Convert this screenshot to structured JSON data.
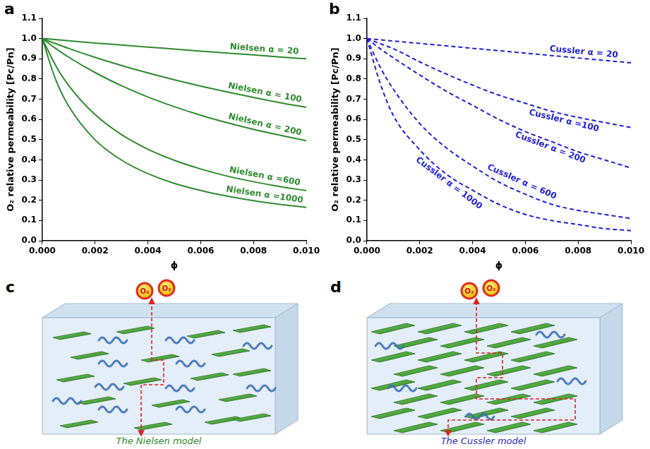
{
  "chart_data": [
    {
      "panel": "a",
      "type": "line",
      "x_label": "ϕ",
      "y_label": "O₂ relative permeability [Pc/Pn]",
      "x": [
        0,
        0.0005,
        0.001,
        0.002,
        0.003,
        0.004,
        0.005,
        0.006,
        0.007,
        0.008,
        0.009,
        0.01
      ],
      "xlim": [
        0,
        0.01
      ],
      "xticks": [
        {
          "value": 0,
          "label": "0.000"
        },
        {
          "value": 0.002,
          "label": "0.002"
        },
        {
          "value": 0.004,
          "label": "0.004"
        },
        {
          "value": 0.006,
          "label": "0.006"
        },
        {
          "value": 0.008,
          "label": "0.008"
        },
        {
          "value": 0.01,
          "label": "0.010"
        }
      ],
      "ylim": [
        0,
        1.1
      ],
      "yticks": [
        {
          "value": 0,
          "label": "0.0"
        },
        0.1,
        0.2,
        0.3,
        0.4,
        0.5,
        0.6,
        0.7,
        0.8,
        0.9,
        {
          "value": 1,
          "label": "1.0"
        },
        1.1
      ],
      "grid": false,
      "series": [
        {
          "name": "Nielsen α = 20",
          "color": "#2e8b2e",
          "line_style": "solid",
          "values": [
            1,
            0.995,
            0.989,
            0.978,
            0.968,
            0.958,
            0.948,
            0.938,
            0.928,
            0.919,
            0.909,
            0.9
          ]
        },
        {
          "name": "Nielsen α = 100",
          "color": "#2e8b2e",
          "line_style": "solid",
          "values": [
            1,
            0.975,
            0.951,
            0.907,
            0.867,
            0.83,
            0.796,
            0.765,
            0.736,
            0.709,
            0.683,
            0.66
          ]
        },
        {
          "name": "Nielsen α = 200",
          "color": "#2e8b2e",
          "line_style": "solid",
          "values": [
            1,
            0.952,
            0.908,
            0.832,
            0.767,
            0.711,
            0.663,
            0.621,
            0.584,
            0.551,
            0.522,
            0.495
          ]
        },
        {
          "name": "Nielsen α =600",
          "color": "#2e8b2e",
          "line_style": "solid",
          "values": [
            1,
            0.869,
            0.768,
            0.624,
            0.525,
            0.453,
            0.398,
            0.355,
            0.32,
            0.292,
            0.268,
            0.248
          ]
        },
        {
          "name": "Nielsen α =1000",
          "color": "#2e8b2e",
          "line_style": "solid",
          "values": [
            1,
            0.8,
            0.666,
            0.499,
            0.399,
            0.332,
            0.284,
            0.249,
            0.221,
            0.198,
            0.18,
            0.165
          ]
        }
      ]
    },
    {
      "panel": "b",
      "type": "line",
      "x_label": "ϕ",
      "y_label": "O₂ relative permeability [Pc/Pn]",
      "x": [
        0,
        0.0005,
        0.001,
        0.002,
        0.003,
        0.004,
        0.005,
        0.006,
        0.007,
        0.008,
        0.009,
        0.01
      ],
      "xlim": [
        0,
        0.01
      ],
      "xticks": [
        {
          "value": 0,
          "label": "0.000"
        },
        {
          "value": 0.002,
          "label": "0.002"
        },
        {
          "value": 0.004,
          "label": "0.004"
        },
        {
          "value": 0.006,
          "label": "0.006"
        },
        {
          "value": 0.008,
          "label": "0.008"
        },
        {
          "value": 0.01,
          "label": "0.010"
        }
      ],
      "ylim": [
        0,
        1.1
      ],
      "yticks": [
        {
          "value": 0,
          "label": "0.0"
        },
        0.1,
        0.2,
        0.3,
        0.4,
        0.5,
        0.6,
        0.7,
        0.8,
        0.9,
        {
          "value": 1,
          "label": "1.0"
        },
        1.1
      ],
      "grid": false,
      "series": [
        {
          "name": "Cussler α = 20",
          "color": "#1f1fd6",
          "line_style": "dashed",
          "values": [
            1,
            0.994,
            0.988,
            0.976,
            0.964,
            0.952,
            0.94,
            0.928,
            0.916,
            0.904,
            0.892,
            0.88
          ]
        },
        {
          "name": "Cussler α =100",
          "color": "#1f1fd6",
          "line_style": "dashed",
          "values": [
            1,
            0.975,
            0.95,
            0.885,
            0.825,
            0.77,
            0.72,
            0.68,
            0.64,
            0.61,
            0.585,
            0.56
          ]
        },
        {
          "name": "Cussler α = 200",
          "color": "#1f1fd6",
          "line_style": "dashed",
          "values": [
            1,
            0.95,
            0.905,
            0.82,
            0.74,
            0.67,
            0.6,
            0.54,
            0.49,
            0.44,
            0.4,
            0.36
          ]
        },
        {
          "name": "Cussler α = 600",
          "color": "#1f1fd6",
          "line_style": "dashed",
          "values": [
            1,
            0.86,
            0.75,
            0.58,
            0.46,
            0.37,
            0.29,
            0.23,
            0.18,
            0.15,
            0.13,
            0.11
          ]
        },
        {
          "name": "Cussler α = 1000",
          "color": "#1f1fd6",
          "line_style": "dashed",
          "values": [
            1,
            0.78,
            0.62,
            0.45,
            0.33,
            0.25,
            0.18,
            0.13,
            0.1,
            0.08,
            0.06,
            0.05
          ]
        }
      ]
    }
  ],
  "diagrams": [
    {
      "panel": "c",
      "molecule_labels": [
        "O₂",
        "O₂"
      ],
      "caption": "The Nielsen model"
    },
    {
      "panel": "d",
      "molecule_labels": [
        "O₂",
        "O₂"
      ],
      "caption": "The Cussler model"
    }
  ]
}
